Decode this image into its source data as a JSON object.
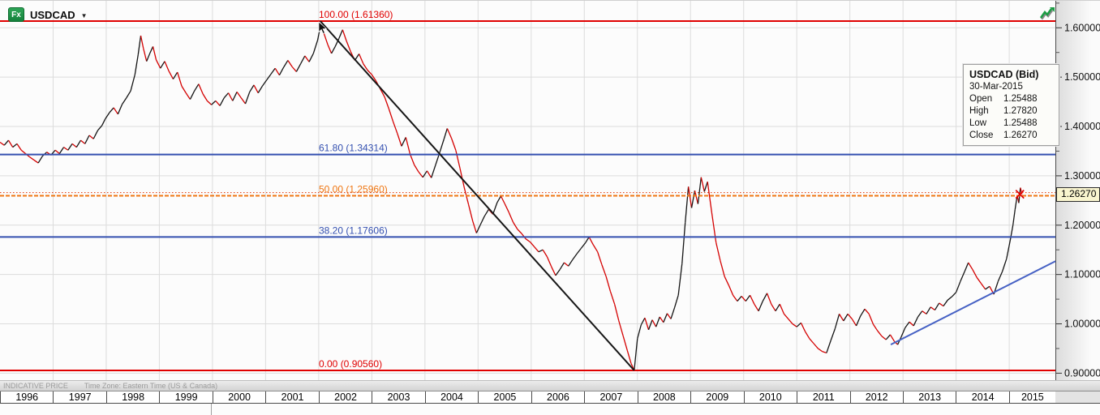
{
  "header": {
    "logo": "Fx",
    "symbol": "USDCAD",
    "caret": "▼"
  },
  "tooltip": {
    "title": "USDCAD (Bid)",
    "date": "30-Mar-2015",
    "rows": [
      {
        "label": "Open",
        "value": "1.25488"
      },
      {
        "label": "High",
        "value": "1.27820"
      },
      {
        "label": "Low",
        "value": "1.25488"
      },
      {
        "label": "Close",
        "value": "1.26270"
      }
    ]
  },
  "price_tag": {
    "value": "1.26270",
    "bg": "#f9f5cf"
  },
  "footer": {
    "indicative": "INDICATIVE PRICE",
    "timezone": "Time Zone: Eastern Time (US & Canada)"
  },
  "colors": {
    "up_candle": "#141414",
    "down_candle": "#d40000",
    "fib_red": "#e00000",
    "fib_blue": "#3450b0",
    "fib_orange": "#ef7612",
    "trend_down": "#161616",
    "trend_up": "#4661c4",
    "grid": "#dcdcdc",
    "axis_text": "#111111",
    "price_line": "#e03000",
    "logo_green": "#14813c",
    "trend_icon_green": "#1c9c44"
  },
  "chart_data": {
    "type": "candlestick",
    "title": "USDCAD weekly chart with Fibonacci retracement 1996-2015",
    "x_axis": {
      "years": [
        "1996",
        "1997",
        "1998",
        "1999",
        "2000",
        "2001",
        "2002",
        "2003",
        "2004",
        "2005",
        "2006",
        "2007",
        "2008",
        "2009",
        "2010",
        "2011",
        "2012",
        "2013",
        "2014",
        "2015"
      ]
    },
    "y_axis": {
      "range": [
        0.88,
        1.655
      ],
      "minor_step": 0.05,
      "ticks": [
        {
          "v": 1.6,
          "label": "1.60000"
        },
        {
          "v": 1.5,
          "label": "1.50000"
        },
        {
          "v": 1.4,
          "label": "1.40000"
        },
        {
          "v": 1.3,
          "label": "1.30000"
        },
        {
          "v": 1.2,
          "label": "1.20000"
        },
        {
          "v": 1.1,
          "label": "1.10000"
        },
        {
          "v": 1.0,
          "label": "1.00000"
        },
        {
          "v": 0.9,
          "label": "0.90000"
        }
      ]
    },
    "fib_levels": [
      {
        "pct": "100.00",
        "value": 1.6136,
        "label": "100.00 (1.61360)",
        "color": "#e00000",
        "width": 2
      },
      {
        "pct": "61.80",
        "value": 1.34314,
        "label": "61.80 (1.34314)",
        "color": "#3450b0",
        "width": 2
      },
      {
        "pct": "50.00",
        "value": 1.2596,
        "label": "50.00 (1.25960)",
        "color": "#ef7612",
        "width": 2
      },
      {
        "pct": "38.20",
        "value": 1.17606,
        "label": "38.20 (1.17606)",
        "color": "#3450b0",
        "width": 2
      },
      {
        "pct": "0.00",
        "value": 0.9056,
        "label": "0.00 (0.90560)",
        "color": "#e00000",
        "width": 2
      }
    ],
    "current_price_line": {
      "value": 1.2627,
      "color": "#e03000"
    },
    "trendlines": [
      {
        "name": "downtrend-2002-2007",
        "color": "#161616",
        "points": [
          [
            2002.03,
            1.6136
          ],
          [
            2007.94,
            0.9056
          ]
        ]
      },
      {
        "name": "uptrend-2012-2015",
        "color": "#4661c4",
        "points": [
          [
            2012.77,
            0.958
          ],
          [
            2015.87,
            1.127
          ]
        ]
      }
    ],
    "marker": {
      "t": 2015.2,
      "v": 1.2627,
      "color": "#e00000"
    },
    "last_bar": {
      "date": "30-Mar-2015",
      "open": 1.25488,
      "high": 1.2782,
      "low": 1.25488,
      "close": 1.2627
    },
    "series": [
      [
        1996.0,
        1.368
      ],
      [
        1996.08,
        1.362
      ],
      [
        1996.16,
        1.372
      ],
      [
        1996.24,
        1.358
      ],
      [
        1996.32,
        1.365
      ],
      [
        1996.4,
        1.352
      ],
      [
        1996.48,
        1.345
      ],
      [
        1996.56,
        1.338
      ],
      [
        1996.64,
        1.332
      ],
      [
        1996.72,
        1.326
      ],
      [
        1996.8,
        1.34
      ],
      [
        1996.88,
        1.348
      ],
      [
        1996.96,
        1.342
      ],
      [
        1997.04,
        1.352
      ],
      [
        1997.12,
        1.345
      ],
      [
        1997.2,
        1.358
      ],
      [
        1997.28,
        1.352
      ],
      [
        1997.36,
        1.365
      ],
      [
        1997.44,
        1.358
      ],
      [
        1997.52,
        1.372
      ],
      [
        1997.6,
        1.365
      ],
      [
        1997.68,
        1.382
      ],
      [
        1997.76,
        1.375
      ],
      [
        1997.84,
        1.392
      ],
      [
        1997.92,
        1.402
      ],
      [
        1997.98,
        1.415
      ],
      [
        1998.06,
        1.428
      ],
      [
        1998.14,
        1.438
      ],
      [
        1998.22,
        1.425
      ],
      [
        1998.3,
        1.445
      ],
      [
        1998.38,
        1.458
      ],
      [
        1998.46,
        1.472
      ],
      [
        1998.54,
        1.505
      ],
      [
        1998.6,
        1.545
      ],
      [
        1998.65,
        1.584
      ],
      [
        1998.7,
        1.558
      ],
      [
        1998.76,
        1.532
      ],
      [
        1998.82,
        1.548
      ],
      [
        1998.88,
        1.562
      ],
      [
        1998.94,
        1.535
      ],
      [
        1999.02,
        1.518
      ],
      [
        1999.1,
        1.532
      ],
      [
        1999.18,
        1.512
      ],
      [
        1999.26,
        1.496
      ],
      [
        1999.34,
        1.51
      ],
      [
        1999.42,
        1.482
      ],
      [
        1999.5,
        1.468
      ],
      [
        1999.58,
        1.455
      ],
      [
        1999.66,
        1.472
      ],
      [
        1999.74,
        1.486
      ],
      [
        1999.82,
        1.466
      ],
      [
        1999.9,
        1.452
      ],
      [
        1999.98,
        1.444
      ],
      [
        2000.06,
        1.452
      ],
      [
        2000.14,
        1.442
      ],
      [
        2000.22,
        1.458
      ],
      [
        2000.3,
        1.468
      ],
      [
        2000.38,
        1.452
      ],
      [
        2000.46,
        1.47
      ],
      [
        2000.54,
        1.458
      ],
      [
        2000.62,
        1.446
      ],
      [
        2000.7,
        1.47
      ],
      [
        2000.78,
        1.484
      ],
      [
        2000.86,
        1.468
      ],
      [
        2000.94,
        1.482
      ],
      [
        2001.02,
        1.494
      ],
      [
        2001.1,
        1.506
      ],
      [
        2001.18,
        1.518
      ],
      [
        2001.26,
        1.504
      ],
      [
        2001.34,
        1.52
      ],
      [
        2001.42,
        1.534
      ],
      [
        2001.5,
        1.521
      ],
      [
        2001.58,
        1.511
      ],
      [
        2001.66,
        1.527
      ],
      [
        2001.74,
        1.543
      ],
      [
        2001.82,
        1.531
      ],
      [
        2001.9,
        1.548
      ],
      [
        2001.98,
        1.575
      ],
      [
        2002.04,
        1.608
      ],
      [
        2002.1,
        1.588
      ],
      [
        2002.17,
        1.566
      ],
      [
        2002.24,
        1.548
      ],
      [
        2002.31,
        1.562
      ],
      [
        2002.38,
        1.578
      ],
      [
        2002.45,
        1.596
      ],
      [
        2002.52,
        1.574
      ],
      [
        2002.6,
        1.552
      ],
      [
        2002.68,
        1.534
      ],
      [
        2002.76,
        1.547
      ],
      [
        2002.84,
        1.527
      ],
      [
        2002.92,
        1.514
      ],
      [
        2003.0,
        1.505
      ],
      [
        2003.08,
        1.492
      ],
      [
        2003.16,
        1.476
      ],
      [
        2003.24,
        1.46
      ],
      [
        2003.32,
        1.436
      ],
      [
        2003.4,
        1.41
      ],
      [
        2003.48,
        1.386
      ],
      [
        2003.56,
        1.36
      ],
      [
        2003.64,
        1.378
      ],
      [
        2003.72,
        1.344
      ],
      [
        2003.8,
        1.322
      ],
      [
        2003.88,
        1.308
      ],
      [
        2003.96,
        1.297
      ],
      [
        2004.04,
        1.31
      ],
      [
        2004.12,
        1.296
      ],
      [
        2004.2,
        1.322
      ],
      [
        2004.28,
        1.348
      ],
      [
        2004.36,
        1.375
      ],
      [
        2004.42,
        1.396
      ],
      [
        2004.5,
        1.376
      ],
      [
        2004.58,
        1.352
      ],
      [
        2004.66,
        1.315
      ],
      [
        2004.74,
        1.276
      ],
      [
        2004.82,
        1.242
      ],
      [
        2004.9,
        1.208
      ],
      [
        2004.97,
        1.184
      ],
      [
        2005.04,
        1.2
      ],
      [
        2005.12,
        1.218
      ],
      [
        2005.2,
        1.232
      ],
      [
        2005.28,
        1.222
      ],
      [
        2005.36,
        1.246
      ],
      [
        2005.43,
        1.259
      ],
      [
        2005.5,
        1.244
      ],
      [
        2005.58,
        1.226
      ],
      [
        2005.66,
        1.206
      ],
      [
        2005.74,
        1.192
      ],
      [
        2005.82,
        1.183
      ],
      [
        2005.9,
        1.172
      ],
      [
        2005.98,
        1.166
      ],
      [
        2006.06,
        1.156
      ],
      [
        2006.14,
        1.146
      ],
      [
        2006.22,
        1.15
      ],
      [
        2006.3,
        1.136
      ],
      [
        2006.38,
        1.116
      ],
      [
        2006.46,
        1.098
      ],
      [
        2006.54,
        1.11
      ],
      [
        2006.62,
        1.124
      ],
      [
        2006.7,
        1.117
      ],
      [
        2006.78,
        1.13
      ],
      [
        2006.86,
        1.142
      ],
      [
        2006.94,
        1.153
      ],
      [
        2007.02,
        1.164
      ],
      [
        2007.09,
        1.176
      ],
      [
        2007.17,
        1.16
      ],
      [
        2007.25,
        1.146
      ],
      [
        2007.33,
        1.12
      ],
      [
        2007.41,
        1.096
      ],
      [
        2007.49,
        1.066
      ],
      [
        2007.57,
        1.04
      ],
      [
        2007.65,
        1.006
      ],
      [
        2007.73,
        0.976
      ],
      [
        2007.81,
        0.946
      ],
      [
        2007.88,
        0.92
      ],
      [
        2007.94,
        0.906
      ],
      [
        2008.0,
        0.97
      ],
      [
        2008.07,
        0.998
      ],
      [
        2008.14,
        1.012
      ],
      [
        2008.21,
        0.988
      ],
      [
        2008.28,
        1.008
      ],
      [
        2008.35,
        0.994
      ],
      [
        2008.42,
        1.014
      ],
      [
        2008.49,
        1.003
      ],
      [
        2008.56,
        1.021
      ],
      [
        2008.63,
        1.01
      ],
      [
        2008.7,
        1.033
      ],
      [
        2008.77,
        1.058
      ],
      [
        2008.84,
        1.122
      ],
      [
        2008.9,
        1.205
      ],
      [
        2008.96,
        1.278
      ],
      [
        2009.02,
        1.235
      ],
      [
        2009.08,
        1.27
      ],
      [
        2009.14,
        1.243
      ],
      [
        2009.2,
        1.297
      ],
      [
        2009.26,
        1.268
      ],
      [
        2009.32,
        1.288
      ],
      [
        2009.4,
        1.225
      ],
      [
        2009.48,
        1.165
      ],
      [
        2009.56,
        1.128
      ],
      [
        2009.64,
        1.096
      ],
      [
        2009.72,
        1.078
      ],
      [
        2009.8,
        1.058
      ],
      [
        2009.88,
        1.046
      ],
      [
        2009.96,
        1.056
      ],
      [
        2010.04,
        1.046
      ],
      [
        2010.12,
        1.058
      ],
      [
        2010.2,
        1.04
      ],
      [
        2010.28,
        1.026
      ],
      [
        2010.36,
        1.046
      ],
      [
        2010.44,
        1.062
      ],
      [
        2010.52,
        1.04
      ],
      [
        2010.6,
        1.026
      ],
      [
        2010.68,
        1.04
      ],
      [
        2010.76,
        1.02
      ],
      [
        2010.84,
        1.01
      ],
      [
        2010.92,
        1.0
      ],
      [
        2011.0,
        0.994
      ],
      [
        2011.08,
        1.002
      ],
      [
        2011.16,
        0.984
      ],
      [
        2011.24,
        0.97
      ],
      [
        2011.32,
        0.96
      ],
      [
        2011.4,
        0.95
      ],
      [
        2011.48,
        0.944
      ],
      [
        2011.56,
        0.941
      ],
      [
        2011.64,
        0.966
      ],
      [
        2011.72,
        0.99
      ],
      [
        2011.8,
        1.02
      ],
      [
        2011.88,
        1.006
      ],
      [
        2011.96,
        1.02
      ],
      [
        2012.04,
        1.01
      ],
      [
        2012.12,
        0.996
      ],
      [
        2012.2,
        1.016
      ],
      [
        2012.28,
        1.03
      ],
      [
        2012.36,
        1.02
      ],
      [
        2012.44,
        0.999
      ],
      [
        2012.52,
        0.986
      ],
      [
        2012.6,
        0.975
      ],
      [
        2012.68,
        0.968
      ],
      [
        2012.76,
        0.978
      ],
      [
        2012.84,
        0.964
      ],
      [
        2012.9,
        0.958
      ],
      [
        2012.96,
        0.972
      ],
      [
        2013.04,
        0.992
      ],
      [
        2013.12,
        1.004
      ],
      [
        2013.2,
        0.996
      ],
      [
        2013.28,
        1.014
      ],
      [
        2013.36,
        1.026
      ],
      [
        2013.44,
        1.02
      ],
      [
        2013.52,
        1.034
      ],
      [
        2013.6,
        1.028
      ],
      [
        2013.68,
        1.042
      ],
      [
        2013.76,
        1.036
      ],
      [
        2013.84,
        1.048
      ],
      [
        2013.92,
        1.055
      ],
      [
        2014.0,
        1.064
      ],
      [
        2014.08,
        1.086
      ],
      [
        2014.16,
        1.106
      ],
      [
        2014.23,
        1.124
      ],
      [
        2014.31,
        1.11
      ],
      [
        2014.39,
        1.094
      ],
      [
        2014.47,
        1.082
      ],
      [
        2014.55,
        1.07
      ],
      [
        2014.63,
        1.076
      ],
      [
        2014.71,
        1.06
      ],
      [
        2014.79,
        1.086
      ],
      [
        2014.87,
        1.106
      ],
      [
        2014.95,
        1.132
      ],
      [
        2015.02,
        1.17
      ],
      [
        2015.07,
        1.2
      ],
      [
        2015.11,
        1.232
      ],
      [
        2015.15,
        1.26
      ],
      [
        2015.18,
        1.245
      ],
      [
        2015.21,
        1.276
      ],
      [
        2015.24,
        1.2627
      ]
    ]
  }
}
